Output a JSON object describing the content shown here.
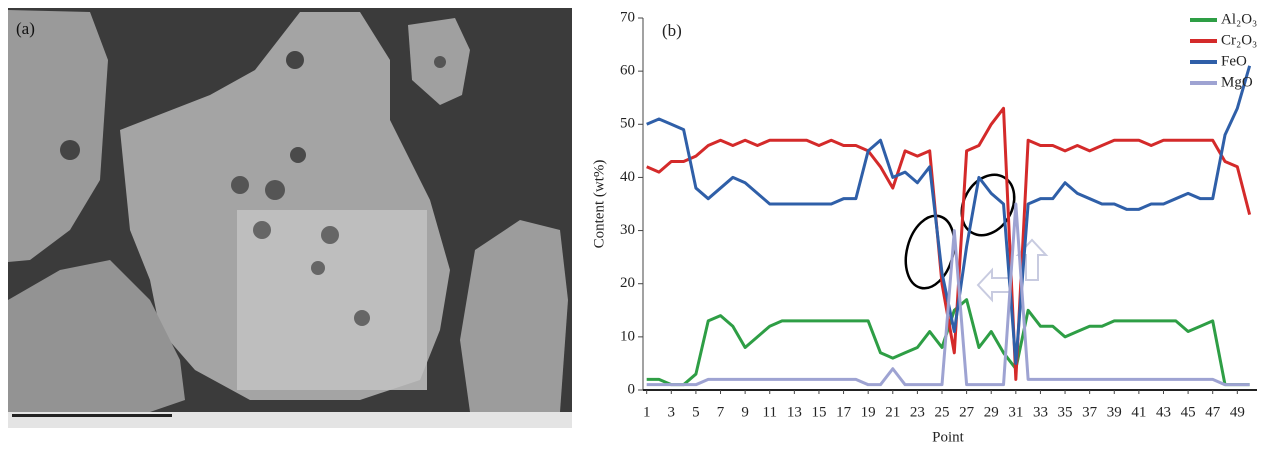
{
  "image": {
    "label": "(a)"
  },
  "chart_data": {
    "type": "line",
    "panel_label": "(b)",
    "x_label": "Point",
    "y_label": "Content (wt%)",
    "x": [
      1,
      2,
      3,
      4,
      5,
      6,
      7,
      8,
      9,
      10,
      11,
      12,
      13,
      14,
      15,
      16,
      17,
      18,
      19,
      20,
      21,
      22,
      23,
      24,
      25,
      26,
      27,
      28,
      29,
      30,
      31,
      32,
      33,
      34,
      35,
      36,
      37,
      38,
      39,
      40,
      41,
      42,
      43,
      44,
      45,
      46,
      47,
      48,
      49,
      50
    ],
    "xlim": [
      0.7,
      50.6
    ],
    "xticks": [
      1,
      3,
      5,
      7,
      9,
      11,
      13,
      15,
      17,
      19,
      21,
      23,
      25,
      27,
      29,
      31,
      33,
      35,
      37,
      39,
      41,
      43,
      45,
      47,
      49
    ],
    "ylim": [
      0,
      70
    ],
    "yticks": [
      0,
      10,
      20,
      30,
      40,
      50,
      60,
      70
    ],
    "legend": "top-right",
    "series": [
      {
        "name": "Al₂O₃",
        "color": "#2e9e45",
        "values": [
          2,
          2,
          1,
          1,
          3,
          13,
          14,
          12,
          8,
          10,
          12,
          13,
          13,
          13,
          13,
          13,
          13,
          13,
          13,
          7,
          6,
          7,
          8,
          11,
          8,
          15,
          17,
          8,
          11,
          7,
          4,
          15,
          12,
          12,
          10,
          11,
          12,
          12,
          13,
          13,
          13,
          13,
          13,
          13,
          11,
          12,
          13,
          1,
          1,
          1
        ]
      },
      {
        "name": "Cr₂O₃",
        "color": "#d42a2a",
        "values": [
          42,
          41,
          43,
          43,
          44,
          46,
          47,
          46,
          47,
          46,
          47,
          47,
          47,
          47,
          46,
          47,
          46,
          46,
          45,
          42,
          38,
          45,
          44,
          45,
          20,
          7,
          45,
          46,
          50,
          53,
          2,
          47,
          46,
          46,
          45,
          46,
          45,
          46,
          47,
          47,
          47,
          46,
          47,
          47,
          47,
          47,
          47,
          43,
          42,
          33
        ]
      },
      {
        "name": "FeO",
        "color": "#2f5fa8",
        "values": [
          50,
          51,
          50,
          49,
          38,
          36,
          38,
          40,
          39,
          37,
          35,
          35,
          35,
          35,
          35,
          35,
          36,
          36,
          45,
          47,
          40,
          41,
          39,
          42,
          22,
          11,
          27,
          40,
          37,
          35,
          5,
          35,
          36,
          36,
          39,
          37,
          36,
          35,
          35,
          34,
          34,
          35,
          35,
          36,
          37,
          36,
          36,
          48,
          53,
          61
        ]
      },
      {
        "name": "MgO",
        "color": "#9ea3d2",
        "values": [
          1,
          1,
          1,
          1,
          1,
          2,
          2,
          2,
          2,
          2,
          2,
          2,
          2,
          2,
          2,
          2,
          2,
          2,
          1,
          1,
          4,
          1,
          1,
          1,
          1,
          30,
          1,
          1,
          1,
          1,
          35,
          2,
          2,
          2,
          2,
          2,
          2,
          2,
          2,
          2,
          2,
          2,
          2,
          2,
          2,
          2,
          2,
          1,
          1,
          1
        ]
      }
    ]
  }
}
